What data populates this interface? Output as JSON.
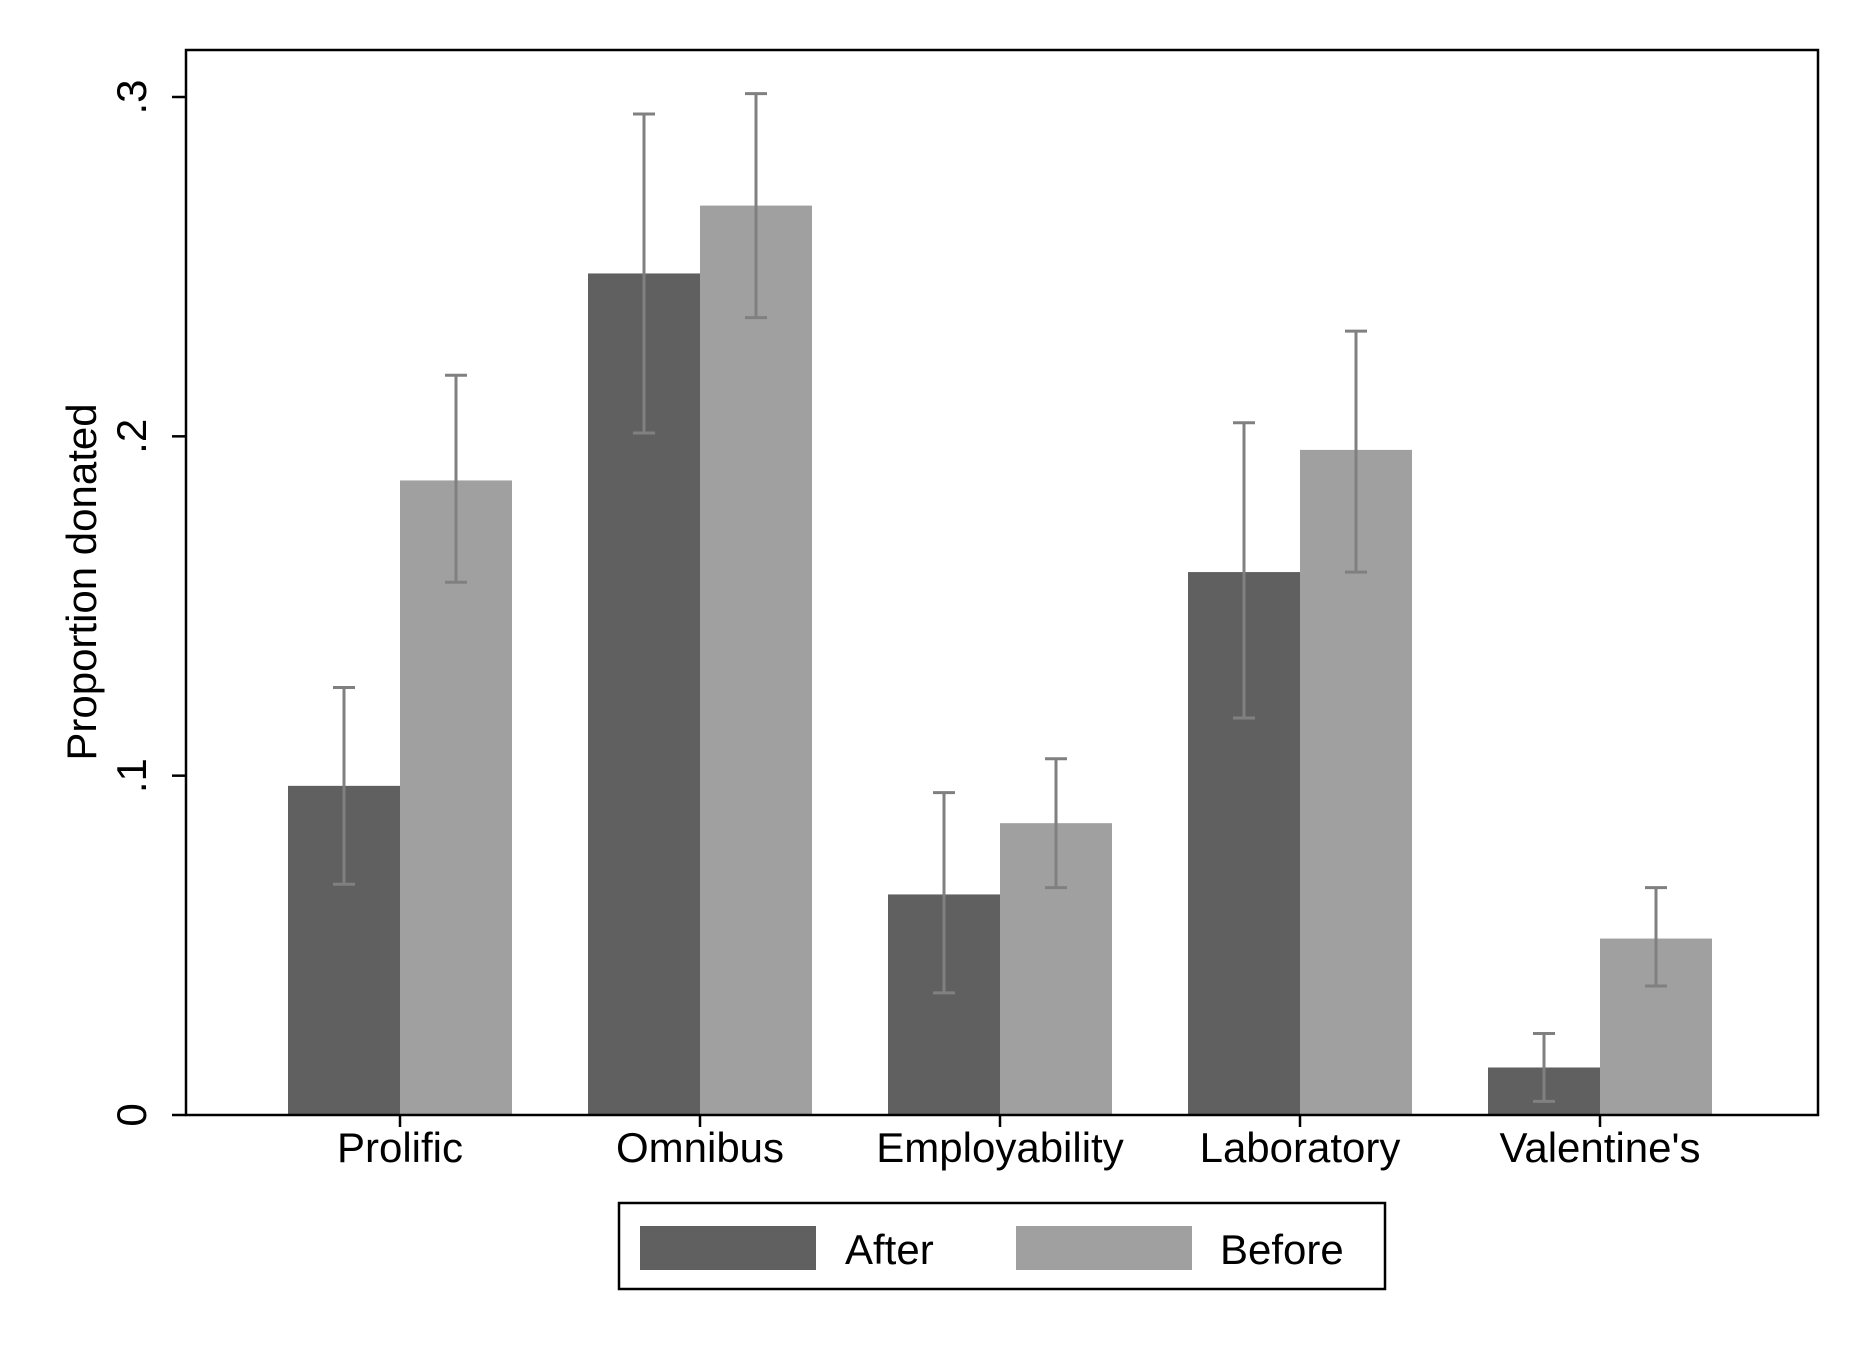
{
  "chart_data": {
    "type": "bar",
    "title": "",
    "xlabel": "",
    "ylabel": "Proportion donated",
    "ylim": [
      0,
      0.3
    ],
    "yticks": [
      {
        "value": 0,
        "label": "0"
      },
      {
        "value": 0.1,
        "label": ".1"
      },
      {
        "value": 0.2,
        "label": ".2"
      },
      {
        "value": 0.3,
        "label": ".3"
      }
    ],
    "categories": [
      "Prolific",
      "Omnibus",
      "Employability",
      "Laboratory",
      "Valentine's"
    ],
    "series": [
      {
        "name": "After",
        "color": "#606060",
        "values": [
          0.097,
          0.248,
          0.065,
          0.16,
          0.014
        ],
        "ci_low": [
          0.068,
          0.201,
          0.036,
          0.117,
          0.004
        ],
        "ci_high": [
          0.126,
          0.295,
          0.095,
          0.204,
          0.024
        ]
      },
      {
        "name": "Before",
        "color": "#a0a0a0",
        "values": [
          0.187,
          0.268,
          0.086,
          0.196,
          0.052
        ],
        "ci_low": [
          0.157,
          0.235,
          0.067,
          0.16,
          0.038
        ],
        "ci_high": [
          0.218,
          0.301,
          0.105,
          0.231,
          0.067
        ]
      }
    ],
    "errorbar_color": "#808080",
    "grid": false,
    "legend": {
      "placement": "bottom-center",
      "entries": [
        "After",
        "Before"
      ]
    }
  }
}
